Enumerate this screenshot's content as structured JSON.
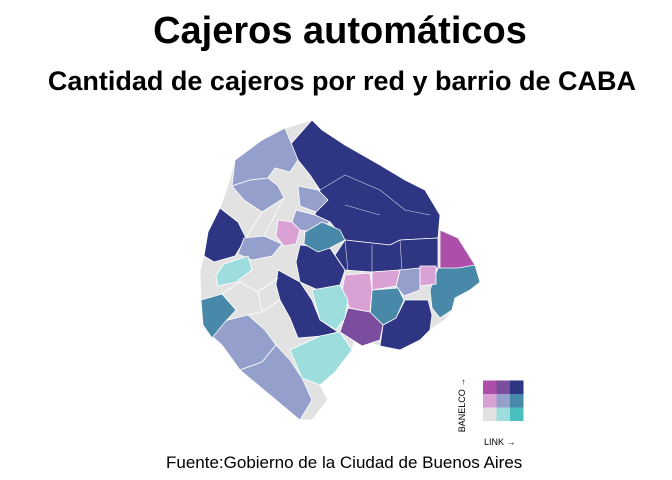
{
  "title": "Cajeros automáticos",
  "subtitle": "Cantidad de cajeros por red y barrio de CABA",
  "caption": "Fuente:Gobierno de la Ciudad de Buenos Aires",
  "legend": {
    "x_label": "LINK →",
    "y_label": "BANELCO →",
    "palette": [
      [
        "#e2e2e2",
        "#9ddddd",
        "#4bbfbf"
      ],
      [
        "#daa1d4",
        "#959fcc",
        "#4889aa"
      ],
      [
        "#ad4fa8",
        "#7a4d9f",
        "#2e3683"
      ]
    ]
  },
  "map": {
    "type": "bivariate-choropleth",
    "region": "CABA",
    "boundary_color": "#ffffff"
  }
}
